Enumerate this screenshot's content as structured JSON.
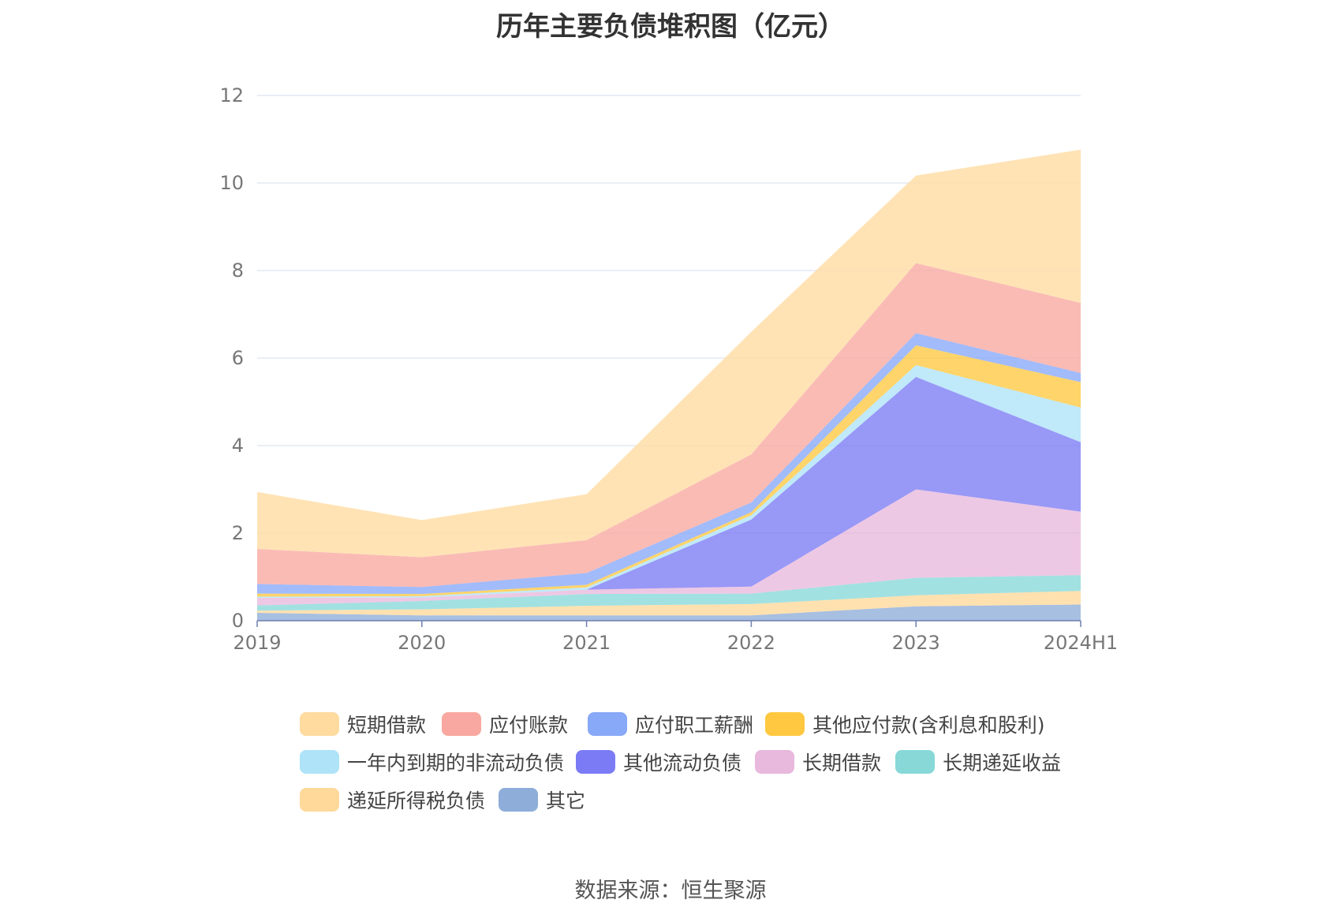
{
  "chart_data": {
    "type": "area",
    "title": "历年主要负债堆积图（亿元）",
    "xlabel": "",
    "ylabel": "",
    "x": [
      "2019",
      "2020",
      "2021",
      "2022",
      "2023",
      "2024H1"
    ],
    "ylim": [
      0,
      12
    ],
    "yticks": [
      "0",
      "2",
      "4",
      "6",
      "8",
      "10",
      "12"
    ],
    "grid": true,
    "legend_position": "bottom",
    "series": [
      {
        "name": "其它",
        "color": "#8eadd9",
        "values": [
          0.18,
          0.12,
          0.12,
          0.12,
          0.33,
          0.37
        ]
      },
      {
        "name": "递延所得税负债",
        "color": "#ffd99a",
        "values": [
          0.05,
          0.14,
          0.22,
          0.26,
          0.25,
          0.31
        ]
      },
      {
        "name": "长期递延收益",
        "color": "#88d8d8",
        "values": [
          0.12,
          0.19,
          0.27,
          0.24,
          0.4,
          0.36
        ]
      },
      {
        "name": "长期借款",
        "color": "#e8b8dd",
        "values": [
          0.17,
          0.08,
          0.1,
          0.16,
          2.02,
          1.45
        ]
      },
      {
        "name": "其他流动负债",
        "color": "#7b7bf5",
        "values": [
          0.0,
          0.0,
          0.0,
          1.53,
          2.57,
          1.59
        ]
      },
      {
        "name": "一年内到期的非流动负债",
        "color": "#aee3f8",
        "values": [
          0.03,
          0.03,
          0.05,
          0.1,
          0.27,
          0.79
        ]
      },
      {
        "name": "其他应付款(含利息和股利)",
        "color": "#ffc840",
        "values": [
          0.07,
          0.05,
          0.06,
          0.07,
          0.45,
          0.58
        ]
      },
      {
        "name": "应付职工薪酬",
        "color": "#88a8f8",
        "values": [
          0.22,
          0.16,
          0.27,
          0.22,
          0.28,
          0.21
        ]
      },
      {
        "name": "应付账款",
        "color": "#f8a8a0",
        "values": [
          0.8,
          0.68,
          0.75,
          1.1,
          1.6,
          1.6
        ]
      },
      {
        "name": "短期借款",
        "color": "#ffdba0",
        "values": [
          1.3,
          0.85,
          1.05,
          2.8,
          2.0,
          3.5
        ]
      }
    ],
    "legend_order": [
      "短期借款",
      "应付账款",
      "应付职工薪酬",
      "其他应付款(含利息和股利)",
      "一年内到期的非流动负债",
      "其他流动负债",
      "长期借款",
      "长期递延收益",
      "递延所得税负债",
      "其它"
    ]
  },
  "source_note": "数据来源：恒生聚源"
}
